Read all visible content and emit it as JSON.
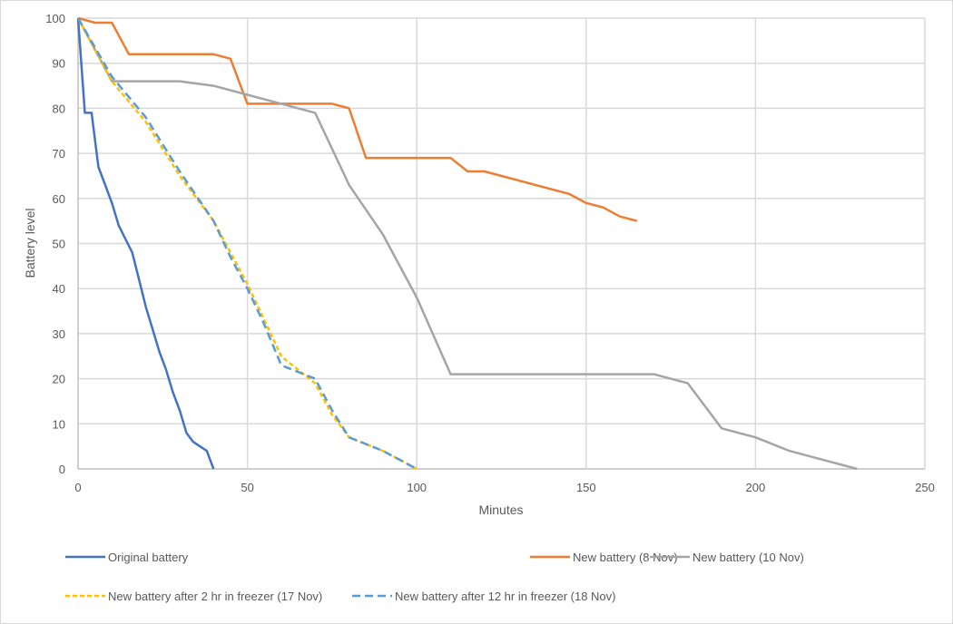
{
  "chart_data": {
    "type": "line",
    "title": "",
    "xlabel": "Minutes",
    "ylabel": "Battery level",
    "xlim": [
      0,
      250
    ],
    "ylim": [
      0,
      100
    ],
    "x_ticks": [
      0,
      50,
      100,
      150,
      200,
      250
    ],
    "y_ticks": [
      0,
      10,
      20,
      30,
      40,
      50,
      60,
      70,
      80,
      90,
      100
    ],
    "grid": true,
    "legend_position": "bottom",
    "series": [
      {
        "name": "Original battery",
        "color": "#4472C4",
        "dash": "solid",
        "points": [
          [
            0,
            100
          ],
          [
            2,
            79
          ],
          [
            4,
            79
          ],
          [
            6,
            67
          ],
          [
            8,
            63
          ],
          [
            10,
            59
          ],
          [
            12,
            54
          ],
          [
            14,
            51
          ],
          [
            16,
            48
          ],
          [
            18,
            42
          ],
          [
            20,
            36
          ],
          [
            22,
            31
          ],
          [
            24,
            26
          ],
          [
            26,
            22
          ],
          [
            28,
            17
          ],
          [
            30,
            13
          ],
          [
            32,
            8
          ],
          [
            34,
            6
          ],
          [
            38,
            4
          ],
          [
            40,
            0
          ]
        ]
      },
      {
        "name": "New battery (8 Nov)",
        "color": "#ED7D31",
        "dash": "solid",
        "points": [
          [
            0,
            100
          ],
          [
            5,
            99
          ],
          [
            10,
            99
          ],
          [
            15,
            92
          ],
          [
            40,
            92
          ],
          [
            45,
            91
          ],
          [
            50,
            81
          ],
          [
            75,
            81
          ],
          [
            80,
            80
          ],
          [
            85,
            69
          ],
          [
            110,
            69
          ],
          [
            115,
            66
          ],
          [
            120,
            66
          ],
          [
            145,
            61
          ],
          [
            150,
            59
          ],
          [
            155,
            58
          ],
          [
            160,
            56
          ],
          [
            165,
            55
          ]
        ]
      },
      {
        "name": "New battery (10 Nov)",
        "color": "#A5A5A5",
        "dash": "solid",
        "points": [
          [
            0,
            100
          ],
          [
            10,
            86
          ],
          [
            30,
            86
          ],
          [
            40,
            85
          ],
          [
            60,
            81
          ],
          [
            70,
            79
          ],
          [
            80,
            63
          ],
          [
            90,
            52
          ],
          [
            100,
            38
          ],
          [
            110,
            21
          ],
          [
            170,
            21
          ],
          [
            180,
            19
          ],
          [
            190,
            9
          ],
          [
            200,
            7
          ],
          [
            210,
            4
          ],
          [
            230,
            0
          ]
        ]
      },
      {
        "name": "New battery after 2 hr in freezer (17 Nov)",
        "color": "#FFC000",
        "dash": "short",
        "points": [
          [
            0,
            100
          ],
          [
            10,
            86
          ],
          [
            20,
            77
          ],
          [
            30,
            65
          ],
          [
            40,
            55
          ],
          [
            45,
            48
          ],
          [
            50,
            41
          ],
          [
            55,
            33
          ],
          [
            60,
            25
          ],
          [
            70,
            19
          ],
          [
            75,
            12
          ],
          [
            80,
            7
          ],
          [
            90,
            4
          ],
          [
            100,
            0
          ]
        ]
      },
      {
        "name": "New battery after 12 hr in freezer (18 Nov)",
        "color": "#5B9BD5",
        "dash": "long",
        "points": [
          [
            0,
            100
          ],
          [
            10,
            87
          ],
          [
            20,
            78
          ],
          [
            30,
            66
          ],
          [
            40,
            55
          ],
          [
            45,
            47
          ],
          [
            50,
            40
          ],
          [
            55,
            32
          ],
          [
            60,
            23
          ],
          [
            70,
            20
          ],
          [
            75,
            13
          ],
          [
            80,
            7
          ],
          [
            90,
            4
          ],
          [
            100,
            0
          ]
        ]
      }
    ]
  }
}
